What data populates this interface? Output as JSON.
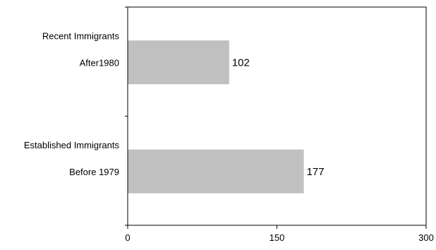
{
  "chart_data": {
    "type": "bar",
    "orientation": "horizontal",
    "categories": [
      [
        "Recent Immigrants",
        "After1980"
      ],
      [
        "Established Immigrants",
        "Before 1979"
      ]
    ],
    "values": [
      102,
      177
    ],
    "data_labels": [
      "102",
      "177"
    ],
    "xlim": [
      0,
      300
    ],
    "x_ticks": [
      0,
      150,
      300
    ],
    "x_tick_labels": [
      "0",
      "150",
      "300"
    ],
    "title": "",
    "xlabel": "",
    "ylabel": "",
    "grid": false,
    "legend": "none",
    "colors": {
      "bar_fill": "#c0c0c0",
      "axis": "#000000",
      "plot_border": "#000000",
      "background": "#ffffff"
    }
  }
}
